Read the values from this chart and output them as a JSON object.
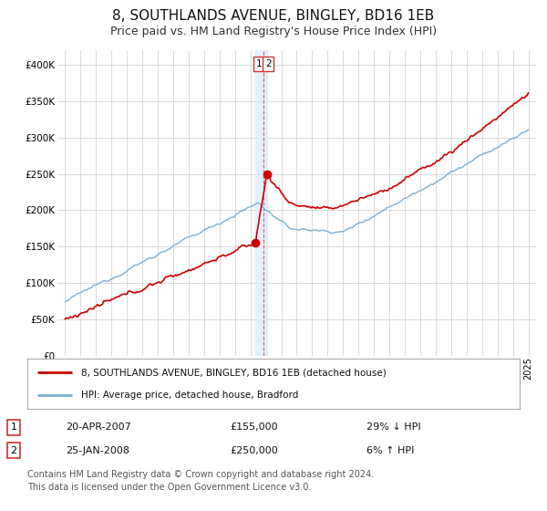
{
  "title": "8, SOUTHLANDS AVENUE, BINGLEY, BD16 1EB",
  "subtitle": "Price paid vs. HM Land Registry's House Price Index (HPI)",
  "title_fontsize": 11,
  "subtitle_fontsize": 9,
  "property_color": "#cc0000",
  "hpi_color": "#7ab0d4",
  "vline_color": "#cc0000",
  "vband_color": "#ddeeff",
  "background_color": "#ffffff",
  "grid_color": "#cccccc",
  "legend_label_property": "8, SOUTHLANDS AVENUE, BINGLEY, BD16 1EB (detached house)",
  "legend_label_hpi": "HPI: Average price, detached house, Bradford",
  "transaction1_date": "20-APR-2007",
  "transaction1_price": "£155,000",
  "transaction1_hpi": "29% ↓ HPI",
  "transaction2_date": "25-JAN-2008",
  "transaction2_price": "£250,000",
  "transaction2_hpi": "6% ↑ HPI",
  "transaction1_year": 2007.3,
  "transaction2_year": 2008.07,
  "transaction1_value": 155000,
  "transaction2_value": 250000,
  "vline_year": 2007.85,
  "vband_x1": 2007.3,
  "vband_x2": 2008.1,
  "ylim_min": 0,
  "ylim_max": 420000,
  "xlim_min": 1994.5,
  "xlim_max": 2025.5,
  "footer_text": "Contains HM Land Registry data © Crown copyright and database right 2024.\nThis data is licensed under the Open Government Licence v3.0.",
  "footer_fontsize": 7.0
}
